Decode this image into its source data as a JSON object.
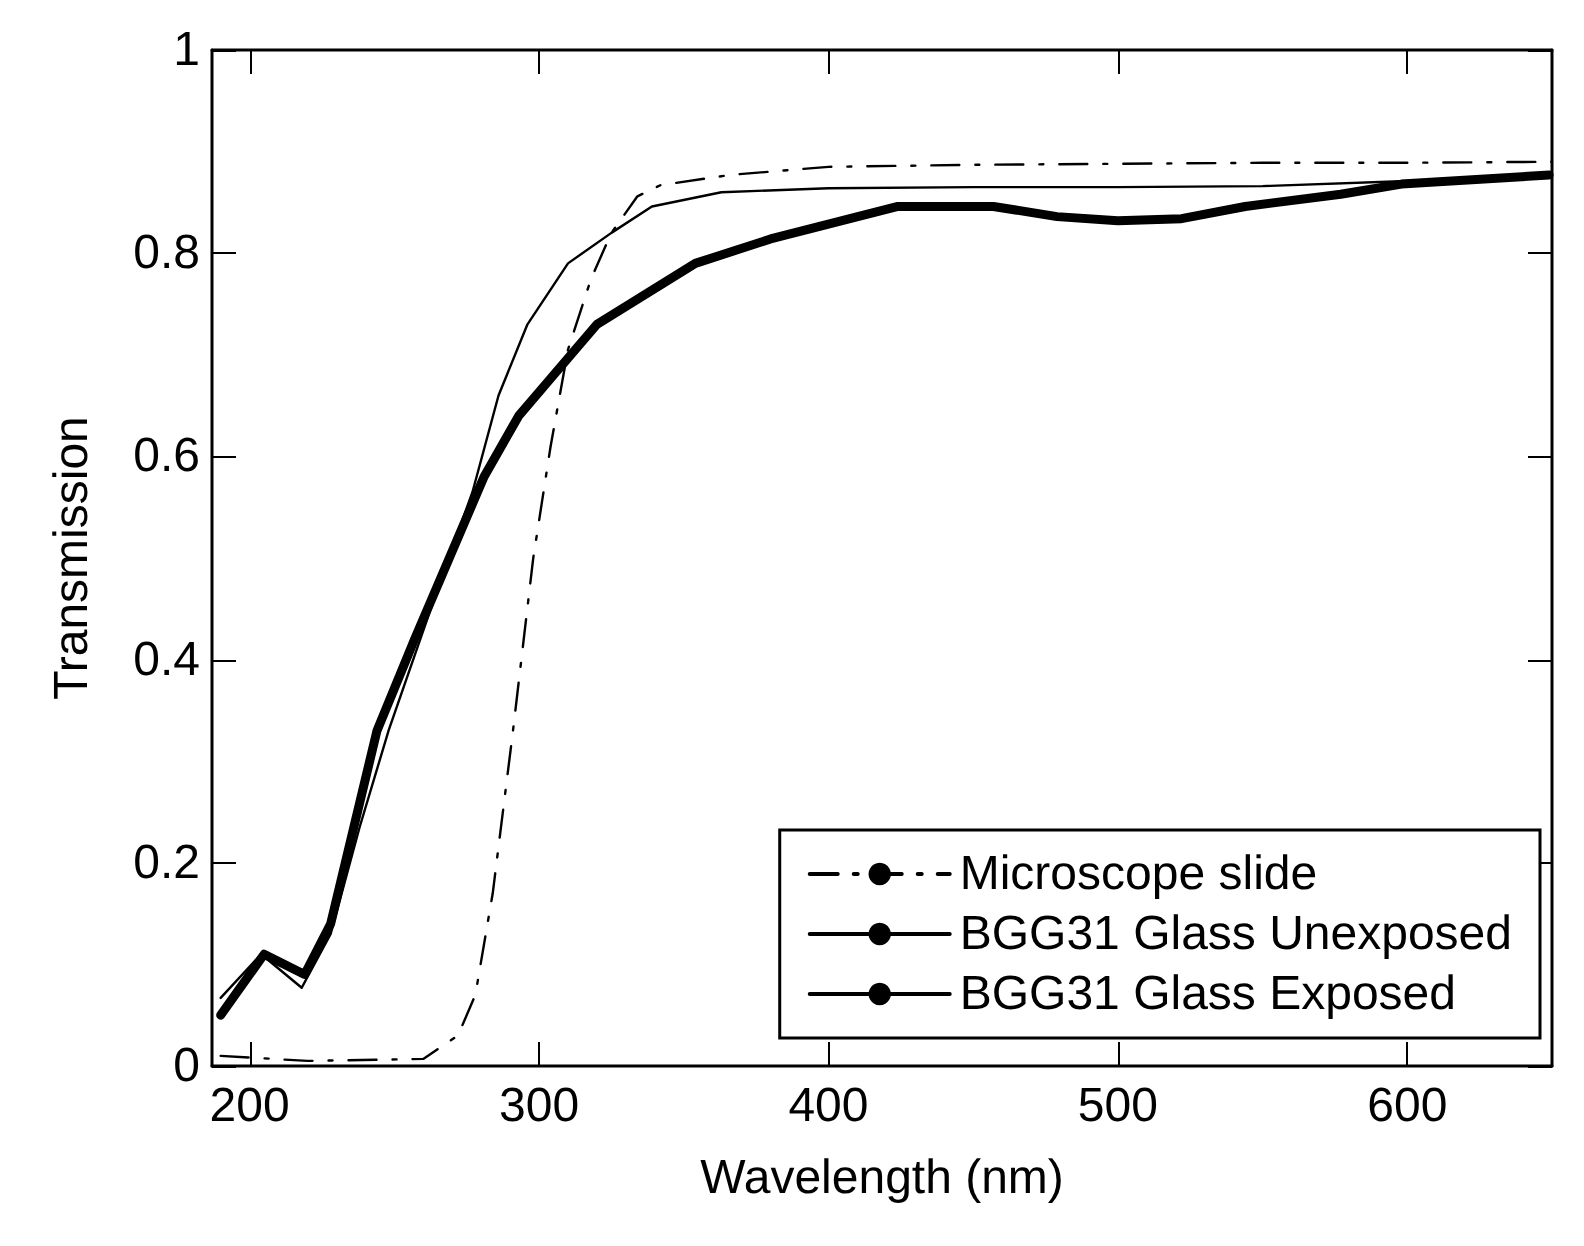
{
  "chart_data": {
    "type": "line",
    "xlabel": "Wavelength (nm)",
    "ylabel": "Transmission",
    "xlim": [
      187,
      650
    ],
    "ylim": [
      0,
      1
    ],
    "xticks": [
      200,
      300,
      400,
      500,
      600
    ],
    "yticks": [
      0,
      0.2,
      0.4,
      0.6,
      0.8,
      1
    ],
    "grid": false,
    "legend": "bottom right",
    "marker": "none",
    "series": [
      {
        "name": "Microscope slide",
        "color": "#000000",
        "line_style": "dashdot",
        "x": [
          190,
          220,
          260,
          272,
          278,
          284,
          291,
          298,
          304,
          310,
          318,
          325,
          334,
          342,
          366,
          400,
          450,
          500,
          550,
          600,
          650
        ],
        "values": [
          0.01,
          0.005,
          0.007,
          0.03,
          0.07,
          0.17,
          0.33,
          0.5,
          0.61,
          0.705,
          0.775,
          0.82,
          0.856,
          0.867,
          0.877,
          0.885,
          0.887,
          0.888,
          0.889,
          0.889,
          0.89
        ]
      },
      {
        "name": "BGG31 Glass Unexposed",
        "color": "#000000",
        "line_style": "solid",
        "x": [
          190,
          204,
          218,
          228,
          238,
          248,
          262,
          277,
          286,
          296,
          310,
          325,
          339,
          363,
          400,
          450,
          500,
          550,
          600,
          650
        ],
        "values": [
          0.067,
          0.11,
          0.077,
          0.13,
          0.235,
          0.33,
          0.445,
          0.565,
          0.66,
          0.73,
          0.79,
          0.82,
          0.846,
          0.86,
          0.864,
          0.865,
          0.865,
          0.866,
          0.871,
          0.876
        ]
      },
      {
        "name": "BGG31 Glass Exposed",
        "color": "#000000",
        "line_style": "solid",
        "x": [
          190,
          205,
          219,
          228,
          236,
          244,
          257,
          269,
          281,
          293,
          305,
          320,
          337,
          354,
          380,
          402,
          424,
          457,
          479,
          500,
          522,
          544,
          577,
          598,
          649
        ],
        "values": [
          0.05,
          0.11,
          0.09,
          0.14,
          0.235,
          0.33,
          0.42,
          0.5,
          0.58,
          0.64,
          0.68,
          0.73,
          0.76,
          0.79,
          0.814,
          0.83,
          0.846,
          0.846,
          0.836,
          0.832,
          0.834,
          0.846,
          0.858,
          0.868,
          0.877
        ]
      }
    ]
  }
}
